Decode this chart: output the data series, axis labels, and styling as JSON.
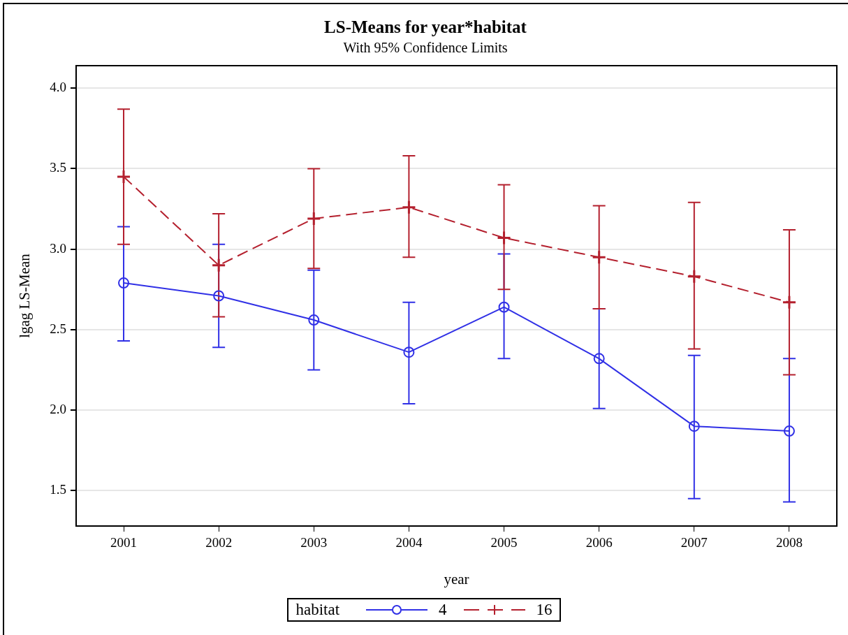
{
  "chart_data": {
    "type": "line",
    "title": "LS-Means for year*habitat",
    "subtitle": "With 95% Confidence Limits",
    "xlabel": "year",
    "ylabel": "lgag LS-Mean",
    "legend_title": "habitat",
    "categories": [
      "2001",
      "2002",
      "2003",
      "2004",
      "2005",
      "2006",
      "2007",
      "2008"
    ],
    "series": [
      {
        "name": "4",
        "color": "#3030e6",
        "marker": "circle",
        "line_style": "solid",
        "values": [
          2.79,
          2.71,
          2.56,
          2.36,
          2.64,
          2.32,
          1.9,
          1.87
        ],
        "errors": [
          [
            2.43,
            3.14
          ],
          [
            2.39,
            3.03
          ],
          [
            2.25,
            2.87
          ],
          [
            2.04,
            2.67
          ],
          [
            2.32,
            2.97
          ],
          [
            2.01,
            2.63
          ],
          [
            1.45,
            2.34
          ],
          [
            1.43,
            2.32
          ]
        ]
      },
      {
        "name": "16",
        "color": "#b4202e",
        "marker": "cross",
        "line_style": "dashed",
        "values": [
          3.45,
          2.9,
          3.19,
          3.26,
          3.07,
          2.95,
          2.83,
          2.67
        ],
        "errors": [
          [
            3.03,
            3.87
          ],
          [
            2.58,
            3.22
          ],
          [
            2.88,
            3.5
          ],
          [
            2.95,
            3.58
          ],
          [
            2.75,
            3.4
          ],
          [
            2.63,
            3.27
          ],
          [
            2.38,
            3.29
          ],
          [
            2.22,
            3.12
          ]
        ]
      }
    ],
    "ylim": [
      1.28,
      4.14
    ],
    "yticks": [
      {
        "value": 1.5,
        "label": "1.5"
      },
      {
        "value": 2,
        "label": "2.0"
      },
      {
        "value": 2.5,
        "label": "2.5"
      },
      {
        "value": 3,
        "label": "3.0"
      },
      {
        "value": 3.5,
        "label": "3.5"
      },
      {
        "value": 4,
        "label": "4.0"
      }
    ],
    "grid": "y",
    "legend": "bottom"
  }
}
